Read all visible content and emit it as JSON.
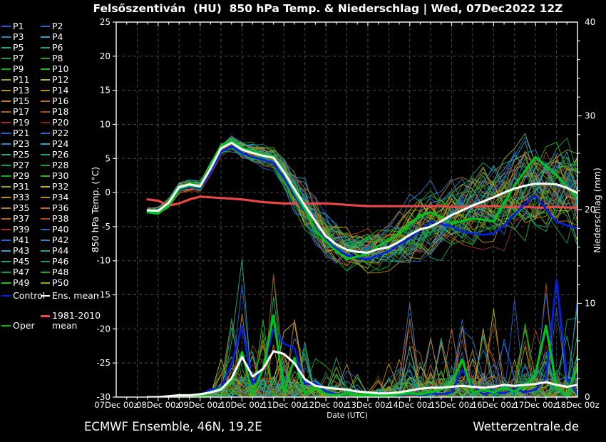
{
  "title": "Felsőszentiván  (HU)  850 hPa Temp. & Niederschlag | Wed, 07Dec2022 12Z",
  "footer": {
    "left": "ECMWF Ensemble, 46N, 19.2E",
    "right": "Wetterzentrale.de"
  },
  "legend": {
    "member_prefix": "P",
    "member_count": 50,
    "special": [
      {
        "label": "Control",
        "color": "#0022dd"
      },
      {
        "label": "Ens. mean",
        "color": "#ffffff"
      },
      {
        "label": "1981-2010 mean",
        "color": "#e84848"
      },
      {
        "label": "Oper",
        "color": "#00bb00"
      }
    ]
  },
  "chart_data": {
    "type": "line",
    "title": "Felsőszentiván (HU) 850 hPa Temp. & Niederschlag | Wed, 07Dec2022 12Z",
    "xlabel": "Date (UTC)",
    "ylabel_left": "850 hPa Temp. (°C)",
    "ylabel_right": "Niederschlag (mm)",
    "ylim_left": [
      -30,
      25
    ],
    "ylim_right": [
      0,
      40
    ],
    "x_range_hours": [
      0,
      264
    ],
    "x_tick_labels": [
      "07Dec 00z",
      "08Dec 00z",
      "09Dec 00z",
      "10Dec 00z",
      "11Dec 00z",
      "12Dec 00z",
      "13Dec 00z",
      "14Dec 00z",
      "15Dec 00z",
      "16Dec 00z",
      "17Dec 00z",
      "18Dec 00z"
    ],
    "y_ticks_left": [
      25,
      20,
      15,
      10,
      5,
      0,
      -5,
      -10,
      -15,
      -20,
      -25,
      -30
    ],
    "y_ticks_right": [
      40,
      30,
      20,
      10,
      0
    ],
    "grid": "dashed, vertical every 12h, horizontal every 5°C",
    "legend_position": "left",
    "hours": [
      18,
      24,
      30,
      36,
      42,
      48,
      54,
      60,
      66,
      72,
      78,
      84,
      90,
      96,
      102,
      108,
      114,
      120,
      126,
      132,
      138,
      144,
      150,
      156,
      162,
      168,
      174,
      180,
      186,
      192,
      198,
      204,
      210,
      216,
      222,
      228,
      234,
      240,
      246,
      252,
      258,
      264
    ],
    "series": [
      {
        "name": "1981-2010 mean",
        "axis": "temp",
        "color": "#e84848",
        "width": 3.2,
        "values": [
          -1.0,
          -1.2,
          -1.9,
          -1.6,
          -1.0,
          -0.6,
          -0.7,
          -0.8,
          -0.9,
          -1.0,
          -1.2,
          -1.4,
          -1.5,
          -1.6,
          -1.6,
          -1.6,
          -1.6,
          -1.6,
          -1.7,
          -1.8,
          -1.9,
          -2.0,
          -2.0,
          -2.0,
          -2.0,
          -2.0,
          -2.0,
          -2.0,
          -2.0,
          -2.1,
          -2.1,
          -2.1,
          -2.0,
          -2.0,
          -2.1,
          -2.1,
          -2.1,
          -2.2,
          -2.2,
          -2.1,
          -2.2,
          -2.2
        ]
      },
      {
        "name": "Control temp",
        "axis": "temp",
        "color": "#0022dd",
        "width": 2.8,
        "values": [
          -2.8,
          -3.0,
          -1.8,
          0.4,
          0.8,
          0.6,
          3.0,
          6.0,
          6.8,
          5.8,
          5.2,
          4.8,
          4.3,
          2.2,
          -0.5,
          -2.8,
          -5.2,
          -7.0,
          -8.2,
          -9.2,
          -9.6,
          -9.8,
          -9.2,
          -8.6,
          -7.6,
          -6.7,
          -5.5,
          -4.3,
          -4.6,
          -5.0,
          -5.7,
          -6.0,
          -6.2,
          -6.0,
          -4.8,
          -3.2,
          -1.6,
          -0.5,
          -2.4,
          -4.3,
          -4.8,
          -5.3
        ]
      },
      {
        "name": "Control precip",
        "axis": "precip",
        "color": "#0022dd",
        "width": 2.8,
        "values": [
          0,
          0,
          0,
          0,
          0,
          0.2,
          0.8,
          1.0,
          3.5,
          7.6,
          1.4,
          3.2,
          7.2,
          5.7,
          5.2,
          1.4,
          1.5,
          0.6,
          0.3,
          0.4,
          0.2,
          0.3,
          0.2,
          0.3,
          0.2,
          0.3,
          0.2,
          0.4,
          0.3,
          0.5,
          2.9,
          1.2,
          0.3,
          0.6,
          0.4,
          0.9,
          0.5,
          0.8,
          2.0,
          12.5,
          2.0,
          0.3
        ]
      },
      {
        "name": "Oper temp",
        "axis": "temp",
        "color": "#00c41e",
        "width": 3.1,
        "values": [
          -2.9,
          -3.1,
          -1.9,
          0.6,
          1.0,
          0.8,
          3.8,
          6.8,
          7.6,
          6.6,
          6.0,
          5.6,
          5.2,
          2.8,
          0.0,
          -2.5,
          -5.5,
          -7.2,
          -8.6,
          -9.8,
          -9.4,
          -9.0,
          -7.8,
          -7.0,
          -6.0,
          -4.6,
          -3.4,
          -2.9,
          -3.6,
          -4.5,
          -4.2,
          -3.8,
          -4.0,
          -4.2,
          -1.5,
          1.0,
          3.2,
          5.2,
          3.8,
          2.6,
          0.8,
          -0.8
        ]
      },
      {
        "name": "Oper precip",
        "axis": "precip",
        "color": "#00c41e",
        "width": 3.1,
        "values": [
          0,
          0,
          0,
          0,
          0,
          0.1,
          0.5,
          1.0,
          1.5,
          4.8,
          0.3,
          3.0,
          8.7,
          0.5,
          4.2,
          0.4,
          1.0,
          0.3,
          0.2,
          0.4,
          0.2,
          0.3,
          0.2,
          0.2,
          0.3,
          0.4,
          0.3,
          0.5,
          0.8,
          1.5,
          4.0,
          0.4,
          0.8,
          0.5,
          1.0,
          0.6,
          1.2,
          2.5,
          7.6,
          1.0,
          0.2,
          3.2
        ]
      },
      {
        "name": "Ens. mean temp",
        "axis": "temp",
        "color": "#ffffff",
        "width": 3.0,
        "values": [
          -2.6,
          -2.7,
          -1.5,
          0.8,
          1.2,
          0.9,
          3.5,
          6.5,
          7.3,
          6.3,
          5.8,
          5.4,
          5.1,
          3.0,
          0.5,
          -1.9,
          -4.2,
          -6.4,
          -7.6,
          -8.4,
          -8.7,
          -8.8,
          -8.3,
          -8.0,
          -7.2,
          -6.2,
          -5.4,
          -5.0,
          -4.2,
          -3.3,
          -2.6,
          -1.9,
          -1.3,
          -0.7,
          0.0,
          0.6,
          1.0,
          1.3,
          1.3,
          1.2,
          0.7,
          -0.1
        ]
      },
      {
        "name": "Ens. mean precip",
        "axis": "precip",
        "color": "#ffffff",
        "width": 3.0,
        "values": [
          0.0,
          0.0,
          0.1,
          0.2,
          0.2,
          0.3,
          0.5,
          0.8,
          2.0,
          4.3,
          2.2,
          3.0,
          4.9,
          4.6,
          3.6,
          1.9,
          1.2,
          1.0,
          0.9,
          0.8,
          0.6,
          0.5,
          0.4,
          0.4,
          0.5,
          0.7,
          0.9,
          1.0,
          1.0,
          1.1,
          1.2,
          1.1,
          1.0,
          1.1,
          1.3,
          1.2,
          1.3,
          1.4,
          1.6,
          1.3,
          1.1,
          1.3
        ]
      }
    ],
    "ensemble": {
      "count": 50,
      "palette": [
        "#2160d0",
        "#2467d2",
        "#2e82c8",
        "#2aa6bf",
        "#20a794",
        "#18a26e",
        "#129c4b",
        "#10a233",
        "#12b117",
        "#25bd1c",
        "#8fae14",
        "#c2b513",
        "#bd9611",
        "#c28618",
        "#c67c20",
        "#bd701e",
        "#b25e1c",
        "#a64c1a",
        "#953418",
        "#8a2312"
      ],
      "member_color_index": [
        0,
        1,
        2,
        3,
        4,
        5,
        6,
        7,
        8,
        9,
        10,
        11,
        12,
        13,
        14,
        15,
        16,
        17,
        18,
        19,
        0,
        1,
        2,
        3,
        4,
        5,
        6,
        7,
        8,
        9,
        10,
        11,
        12,
        13,
        14,
        15,
        16,
        17,
        18,
        0,
        1,
        2,
        3,
        4,
        5,
        6,
        7,
        8,
        9,
        10
      ],
      "temp_envelope_max": [
        -2.0,
        -1.8,
        -0.5,
        1.8,
        2.2,
        2.0,
        4.8,
        7.8,
        8.8,
        8.5,
        8.3,
        8.2,
        8.0,
        7.8,
        8.0,
        8.0,
        6.5,
        5.0,
        2.0,
        0.0,
        -1.5,
        -2.0,
        -1.5,
        -1.0,
        1.0,
        4.0,
        5.0,
        6.0,
        7.0,
        8.0,
        8.3,
        8.5,
        9.0,
        10.0,
        11.5,
        13.0,
        12.8,
        12.5,
        12.2,
        12.0,
        12.5,
        14.0
      ],
      "temp_envelope_min": [
        -3.5,
        -3.6,
        -3.0,
        -0.5,
        -0.2,
        -0.5,
        2.0,
        5.0,
        5.5,
        4.5,
        3.8,
        3.0,
        2.0,
        0.0,
        -3.0,
        -5.5,
        -8.0,
        -9.5,
        -10.8,
        -11.5,
        -12.0,
        -12.5,
        -12.0,
        -11.5,
        -11.2,
        -11.0,
        -10.5,
        -10.0,
        -10.0,
        -10.0,
        -9.8,
        -9.5,
        -9.8,
        -10.0,
        -10.2,
        -10.5,
        -10.8,
        -11.0,
        -11.2,
        -11.5,
        -12.0,
        -12.5
      ],
      "precip_envelope_max": [
        0.3,
        0.3,
        0.5,
        1.0,
        1.0,
        1.5,
        2.5,
        5.0,
        10.0,
        17.3,
        6.0,
        10.0,
        14.0,
        13.5,
        10.0,
        8.0,
        7.0,
        4.0,
        5.0,
        4.0,
        3.0,
        2.0,
        3.0,
        4.0,
        6.0,
        12.0,
        6.0,
        8.0,
        7.0,
        11.0,
        10.0,
        9.0,
        8.0,
        10.0,
        9.0,
        12.0,
        9.0,
        11.0,
        13.0,
        14.0,
        10.0,
        12.0
      ]
    }
  }
}
